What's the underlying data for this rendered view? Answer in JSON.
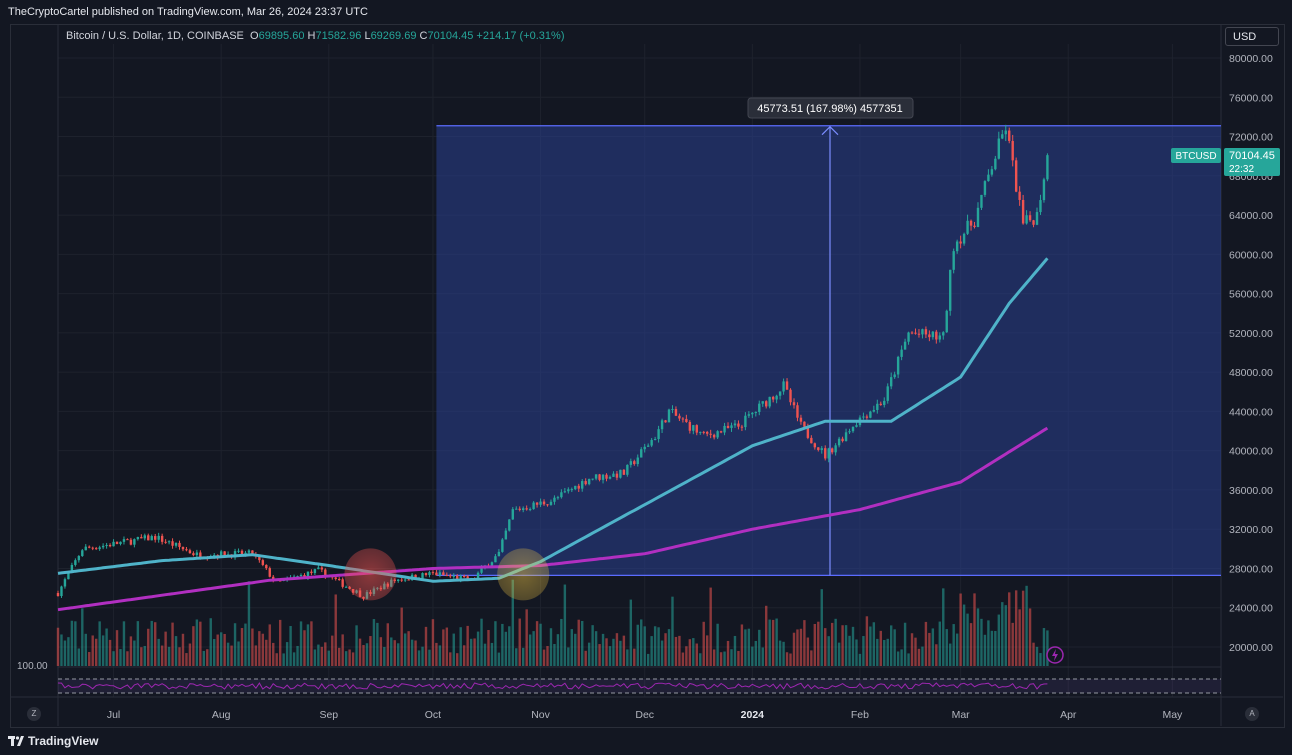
{
  "header": {
    "published": "TheCryptoCartel published on TradingView.com, Mar 26, 2024 23:37 UTC"
  },
  "legend": {
    "symbol": "Bitcoin / U.S. Dollar, 1D, COINBASE",
    "o_label": "O",
    "o_value": "69895.60",
    "h_label": "H",
    "h_value": "71582.96",
    "l_label": "L",
    "l_value": "69269.69",
    "c_label": "C",
    "c_value": "70104.45",
    "change": "+214.17 (+0.31%)"
  },
  "currency_button": "USD",
  "measure_label": "45773.51 (167.98%) 4577351",
  "price_tag": {
    "symbol": "BTCUSD",
    "price": "70104.45",
    "countdown": "22:32"
  },
  "rsi_level_label": "100.00",
  "footer": {
    "brand": "TradingView",
    "left_corner": "Z",
    "right_corner": "A"
  },
  "colors": {
    "background": "#131722",
    "up": "#26a69a",
    "down": "#ef5350",
    "ma_fast": "#4fb3c9",
    "ma_slow": "#b12fc1",
    "range_fill": "#2a3f8f",
    "range_line": "#5b6cff"
  },
  "chart_data": {
    "type": "candlestick",
    "y_axis": {
      "ticks": [
        "80000.00",
        "76000.00",
        "72000.00",
        "68000.00",
        "64000.00",
        "60000.00",
        "56000.00",
        "52000.00",
        "48000.00",
        "44000.00",
        "40000.00",
        "36000.00",
        "32000.00",
        "28000.00",
        "24000.00",
        "20000.00"
      ],
      "range": [
        18000,
        82000
      ]
    },
    "x_axis": {
      "ticks": [
        "Jul",
        "Aug",
        "Sep",
        "Oct",
        "Nov",
        "Dec",
        "2024",
        "Feb",
        "Mar",
        "Apr",
        "May"
      ],
      "start_date": "2023-06-15",
      "end_date": "2024-05-15"
    },
    "price_path": [
      [
        "2023-06-15",
        25500
      ],
      [
        "2023-06-22",
        30000
      ],
      [
        "2023-07-01",
        30500
      ],
      [
        "2023-07-13",
        31200
      ],
      [
        "2023-07-25",
        29400
      ],
      [
        "2023-08-10",
        29500
      ],
      [
        "2023-08-17",
        26500
      ],
      [
        "2023-08-29",
        27800
      ],
      [
        "2023-09-11",
        25200
      ],
      [
        "2023-09-20",
        26800
      ],
      [
        "2023-10-01",
        27500
      ],
      [
        "2023-10-12",
        26800
      ],
      [
        "2023-10-20",
        29500
      ],
      [
        "2023-10-24",
        33900
      ],
      [
        "2023-11-05",
        35000
      ],
      [
        "2023-11-15",
        37200
      ],
      [
        "2023-11-25",
        37700
      ],
      [
        "2023-12-04",
        41500
      ],
      [
        "2023-12-08",
        44000
      ],
      [
        "2023-12-18",
        41500
      ],
      [
        "2023-12-28",
        42500
      ],
      [
        "2024-01-10",
        46600
      ],
      [
        "2024-01-15",
        42500
      ],
      [
        "2024-01-22",
        39500
      ],
      [
        "2024-01-31",
        43000
      ],
      [
        "2024-02-08",
        45200
      ],
      [
        "2024-02-15",
        52000
      ],
      [
        "2024-02-25",
        51500
      ],
      [
        "2024-02-28",
        61000
      ],
      [
        "2024-03-05",
        63500
      ],
      [
        "2024-03-10",
        69000
      ],
      [
        "2024-03-14",
        73000
      ],
      [
        "2024-03-19",
        63000
      ],
      [
        "2024-03-23",
        64000
      ],
      [
        "2024-03-26",
        70104
      ]
    ],
    "ma_fast": [
      [
        "2023-06-15",
        27500
      ],
      [
        "2023-07-15",
        28800
      ],
      [
        "2023-08-10",
        29400
      ],
      [
        "2023-09-01",
        28300
      ],
      [
        "2023-10-01",
        26700
      ],
      [
        "2023-10-20",
        27000
      ],
      [
        "2023-11-01",
        28700
      ],
      [
        "2023-12-01",
        34500
      ],
      [
        "2024-01-01",
        40500
      ],
      [
        "2024-01-22",
        43000
      ],
      [
        "2024-02-10",
        43000
      ],
      [
        "2024-03-01",
        47500
      ],
      [
        "2024-03-15",
        55000
      ],
      [
        "2024-03-26",
        59600
      ]
    ],
    "ma_slow": [
      [
        "2023-06-15",
        23800
      ],
      [
        "2023-08-15",
        26800
      ],
      [
        "2023-10-01",
        28000
      ],
      [
        "2023-11-01",
        28300
      ],
      [
        "2023-12-01",
        29500
      ],
      [
        "2024-01-01",
        32000
      ],
      [
        "2024-02-01",
        34000
      ],
      [
        "2024-03-01",
        36800
      ],
      [
        "2024-03-26",
        42300
      ]
    ],
    "measure_range": {
      "from_date": "2023-10-02",
      "to_date": "2024-05-15",
      "low": 27300,
      "high": 73100
    },
    "highlight_circles": [
      {
        "date": "2023-09-13",
        "price": 27400,
        "color": "#ef5350"
      },
      {
        "date": "2023-10-27",
        "price": 27400,
        "color": "#f2c744"
      }
    ]
  }
}
